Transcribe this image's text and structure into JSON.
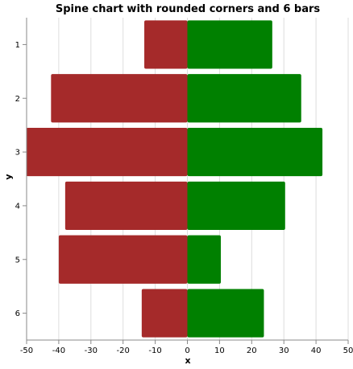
{
  "chart_data": {
    "type": "bar",
    "orientation": "horizontal-diverging",
    "title": "Spine chart with rounded corners and 6 bars",
    "xlabel": "x",
    "ylabel": "y",
    "xlim": [
      -50,
      50
    ],
    "x_ticks": [
      -50,
      -40,
      -30,
      -20,
      -10,
      0,
      10,
      20,
      30,
      40,
      50
    ],
    "categories": [
      "1",
      "2",
      "3",
      "4",
      "5",
      "6"
    ],
    "grid": true,
    "series": [
      {
        "color": "#a52a2a",
        "values": [
          -13.4,
          -42.4,
          -50.1,
          -38.0,
          -40.0,
          -14.2
        ]
      },
      {
        "color": "#008000",
        "values": [
          26.4,
          35.4,
          42.0,
          30.4,
          10.4,
          23.8
        ]
      }
    ]
  }
}
